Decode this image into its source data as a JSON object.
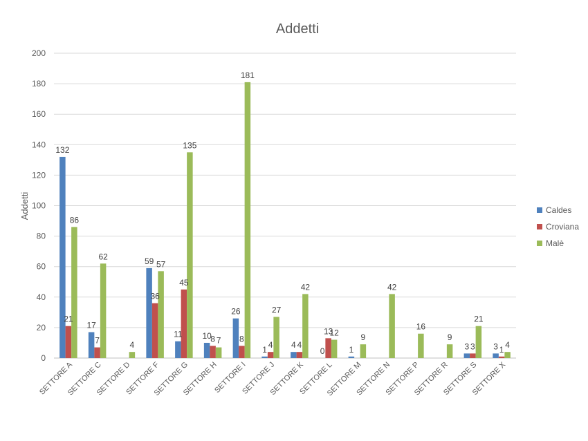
{
  "chart_data": {
    "type": "bar",
    "title": "Addetti",
    "ylabel": "Addetti",
    "xlabel": "",
    "ylim": [
      0,
      200
    ],
    "yticks": [
      0,
      20,
      40,
      60,
      80,
      100,
      120,
      140,
      160,
      180,
      200
    ],
    "grid": true,
    "legend_position": "right",
    "categories": [
      "SETTORE A",
      "SETTORE C",
      "SETTORE D",
      "SETTORE F",
      "SETTORE G",
      "SETTORE H",
      "SETTORE I",
      "SETTORE J",
      "SETTORE K",
      "SETTORE L",
      "SETTORE M",
      "SETTORE N",
      "SETTORE P",
      "SETTORE R",
      "SETTORE S",
      "SETTORE X"
    ],
    "series": [
      {
        "name": "Caldes",
        "color": "#4f81bd",
        "values": [
          132,
          17,
          null,
          59,
          11,
          10,
          26,
          1,
          4,
          0,
          1,
          null,
          null,
          null,
          3,
          3
        ]
      },
      {
        "name": "Croviana",
        "color": "#c0504d",
        "values": [
          21,
          7,
          null,
          36,
          45,
          8,
          8,
          4,
          4,
          13,
          null,
          null,
          null,
          null,
          3,
          1
        ]
      },
      {
        "name": "Malè",
        "color": "#9bbb59",
        "values": [
          86,
          62,
          4,
          57,
          135,
          7,
          181,
          27,
          42,
          12,
          9,
          42,
          16,
          9,
          21,
          4
        ]
      }
    ]
  }
}
